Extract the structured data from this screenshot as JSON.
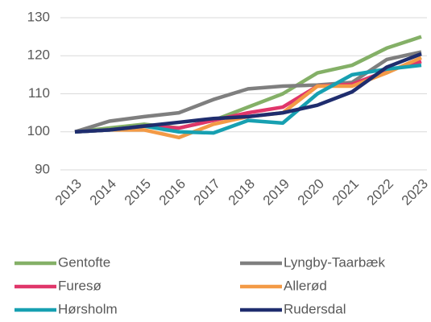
{
  "chart_data": {
    "type": "line",
    "categories": [
      "2013",
      "2014",
      "2015",
      "2016",
      "2017",
      "2018",
      "2019",
      "2020",
      "2021",
      "2022",
      "2023"
    ],
    "series": [
      {
        "name": "Gentofte",
        "color": "#84b067",
        "values": [
          100,
          101,
          102,
          101,
          103,
          106.5,
          110,
          115.5,
          117.5,
          122,
          125
        ]
      },
      {
        "name": "Lyngby-Taarbæk",
        "color": "#7f7f7f",
        "values": [
          100,
          102.8,
          104,
          105,
          108.5,
          111.3,
          112,
          112.3,
          113,
          119,
          121
        ]
      },
      {
        "name": "Furesø",
        "color": "#e0366a",
        "values": [
          100,
          100.5,
          101.5,
          101,
          103,
          105,
          106.5,
          112,
          112.5,
          116,
          118.5
        ]
      },
      {
        "name": "Allerød",
        "color": "#f39a46",
        "values": [
          100,
          100.5,
          100.5,
          98.5,
          102,
          104,
          105,
          112,
          112,
          115.5,
          119.5
        ]
      },
      {
        "name": "Hørsholm",
        "color": "#17a0b1",
        "values": [
          100,
          100.5,
          101.5,
          100,
          99.7,
          103,
          102.3,
          110,
          115,
          116.5,
          117.5
        ]
      },
      {
        "name": "Rudersdal",
        "color": "#1f2d6e",
        "values": [
          100,
          100.5,
          101.5,
          102.5,
          103.5,
          104,
          105,
          107,
          110.5,
          117,
          120.5
        ]
      }
    ],
    "ylim": [
      90,
      130
    ],
    "yticks": [
      90,
      100,
      110,
      120,
      130
    ],
    "grid": true
  }
}
